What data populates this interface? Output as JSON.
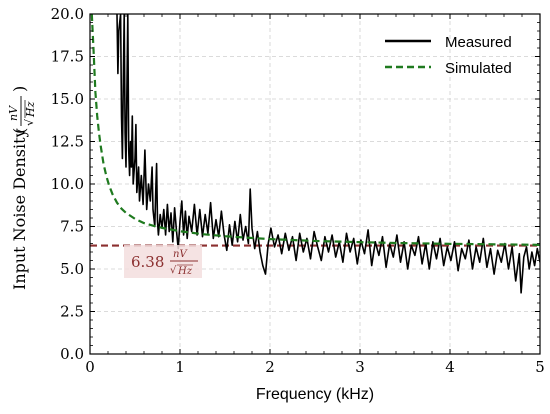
{
  "chart_data": {
    "type": "line",
    "xlabel": "Frequency (kHz)",
    "ylabel": {
      "prefix": "Input Noise Density",
      "open_paren": "(",
      "close_paren": ")",
      "numerator": "nV",
      "denominator": "Hz",
      "sqrt_symbol": "√"
    },
    "xlim": [
      0,
      5
    ],
    "ylim": [
      0,
      20
    ],
    "xticks": [
      0,
      1,
      2,
      3,
      4,
      5
    ],
    "xtick_labels": [
      "0",
      "1",
      "2",
      "3",
      "4",
      "5"
    ],
    "yticks": [
      0,
      2.5,
      5,
      7.5,
      10,
      12.5,
      15,
      17.5,
      20
    ],
    "ytick_labels": [
      "0.0",
      "2.5",
      "5.0",
      "7.5",
      "10.0",
      "12.5",
      "15.0",
      "17.5",
      "20.0"
    ],
    "grid": true,
    "legend_position": "top-right",
    "series": [
      {
        "name": "Measured",
        "color": "#000000",
        "style": "solid",
        "points": [
          [
            0.3,
            20.0
          ],
          [
            0.31,
            16.5
          ],
          [
            0.32,
            19.0
          ],
          [
            0.34,
            20.0
          ],
          [
            0.35,
            14.0
          ],
          [
            0.36,
            11.5
          ],
          [
            0.37,
            16.0
          ],
          [
            0.38,
            20.0
          ],
          [
            0.39,
            13.0
          ],
          [
            0.4,
            11.0
          ],
          [
            0.41,
            15.5
          ],
          [
            0.42,
            20.0
          ],
          [
            0.43,
            12.0
          ],
          [
            0.44,
            10.5
          ],
          [
            0.45,
            12.5
          ],
          [
            0.46,
            11.0
          ],
          [
            0.47,
            14.0
          ],
          [
            0.48,
            10.0
          ],
          [
            0.5,
            11.5
          ],
          [
            0.51,
            13.5
          ],
          [
            0.52,
            9.5
          ],
          [
            0.54,
            11.0
          ],
          [
            0.55,
            9.0
          ],
          [
            0.57,
            10.5
          ],
          [
            0.59,
            8.8
          ],
          [
            0.61,
            12.0
          ],
          [
            0.63,
            8.5
          ],
          [
            0.65,
            10.0
          ],
          [
            0.67,
            9.0
          ],
          [
            0.69,
            11.0
          ],
          [
            0.7,
            8.5
          ],
          [
            0.72,
            7.5
          ],
          [
            0.73,
            9.5
          ],
          [
            0.74,
            11.2
          ],
          [
            0.75,
            7.8
          ],
          [
            0.76,
            7.0
          ],
          [
            0.78,
            8.2
          ],
          [
            0.8,
            7.4
          ],
          [
            0.82,
            8.5
          ],
          [
            0.84,
            7.0
          ],
          [
            0.86,
            8.8
          ],
          [
            0.88,
            7.2
          ],
          [
            0.9,
            8.3
          ],
          [
            0.92,
            6.6
          ],
          [
            0.94,
            8.6
          ],
          [
            0.96,
            7.3
          ],
          [
            0.98,
            6.2
          ],
          [
            1.0,
            7.8
          ],
          [
            1.02,
            9.0
          ],
          [
            1.04,
            7.0
          ],
          [
            1.06,
            8.4
          ],
          [
            1.08,
            6.8
          ],
          [
            1.1,
            8.1
          ],
          [
            1.13,
            7.2
          ],
          [
            1.16,
            8.8
          ],
          [
            1.19,
            7.0
          ],
          [
            1.22,
            8.5
          ],
          [
            1.25,
            6.9
          ],
          [
            1.28,
            8.2
          ],
          [
            1.31,
            7.1
          ],
          [
            1.34,
            8.9
          ],
          [
            1.37,
            6.8
          ],
          [
            1.4,
            7.9
          ],
          [
            1.43,
            6.9
          ],
          [
            1.46,
            8.4
          ],
          [
            1.49,
            7.0
          ],
          [
            1.52,
            6.1
          ],
          [
            1.55,
            7.6
          ],
          [
            1.58,
            6.4
          ],
          [
            1.61,
            7.8
          ],
          [
            1.64,
            6.6
          ],
          [
            1.67,
            8.2
          ],
          [
            1.7,
            6.7
          ],
          [
            1.73,
            7.5
          ],
          [
            1.76,
            6.5
          ],
          [
            1.78,
            9.7
          ],
          [
            1.8,
            7.4
          ],
          [
            1.83,
            6.2
          ],
          [
            1.86,
            7.2
          ],
          [
            1.89,
            6.0
          ],
          [
            1.92,
            5.2
          ],
          [
            1.95,
            4.7
          ],
          [
            1.98,
            6.5
          ],
          [
            2.01,
            7.4
          ],
          [
            2.05,
            6.3
          ],
          [
            2.09,
            7.0
          ],
          [
            2.13,
            5.9
          ],
          [
            2.17,
            7.1
          ],
          [
            2.21,
            6.1
          ],
          [
            2.25,
            6.9
          ],
          [
            2.29,
            5.5
          ],
          [
            2.33,
            7.1
          ],
          [
            2.37,
            6.0
          ],
          [
            2.41,
            6.8
          ],
          [
            2.45,
            5.6
          ],
          [
            2.49,
            7.2
          ],
          [
            2.53,
            6.3
          ],
          [
            2.57,
            5.5
          ],
          [
            2.61,
            6.9
          ],
          [
            2.65,
            6.0
          ],
          [
            2.69,
            7.0
          ],
          [
            2.73,
            5.7
          ],
          [
            2.77,
            6.6
          ],
          [
            2.81,
            5.4
          ],
          [
            2.85,
            7.1
          ],
          [
            2.89,
            6.0
          ],
          [
            2.93,
            6.8
          ],
          [
            2.97,
            5.3
          ],
          [
            3.01,
            6.7
          ],
          [
            3.05,
            5.9
          ],
          [
            3.09,
            7.3
          ],
          [
            3.13,
            5.2
          ],
          [
            3.17,
            6.6
          ],
          [
            3.21,
            5.8
          ],
          [
            3.25,
            6.9
          ],
          [
            3.29,
            5.1
          ],
          [
            3.33,
            6.5
          ],
          [
            3.37,
            5.7
          ],
          [
            3.41,
            7.0
          ],
          [
            3.45,
            5.4
          ],
          [
            3.49,
            6.6
          ],
          [
            3.53,
            5.0
          ],
          [
            3.57,
            6.4
          ],
          [
            3.61,
            5.8
          ],
          [
            3.65,
            6.9
          ],
          [
            3.69,
            5.3
          ],
          [
            3.73,
            6.5
          ],
          [
            3.77,
            5.0
          ],
          [
            3.81,
            6.6
          ],
          [
            3.85,
            5.6
          ],
          [
            3.89,
            6.8
          ],
          [
            3.93,
            5.2
          ],
          [
            3.97,
            6.3
          ],
          [
            4.01,
            5.5
          ],
          [
            4.05,
            6.6
          ],
          [
            4.09,
            4.9
          ],
          [
            4.13,
            6.2
          ],
          [
            4.17,
            5.6
          ],
          [
            4.21,
            6.7
          ],
          [
            4.25,
            5.0
          ],
          [
            4.29,
            6.3
          ],
          [
            4.33,
            5.4
          ],
          [
            4.37,
            6.8
          ],
          [
            4.41,
            5.1
          ],
          [
            4.45,
            6.2
          ],
          [
            4.49,
            4.7
          ],
          [
            4.53,
            6.1
          ],
          [
            4.57,
            5.4
          ],
          [
            4.61,
            6.5
          ],
          [
            4.65,
            5.0
          ],
          [
            4.69,
            6.3
          ],
          [
            4.73,
            4.3
          ],
          [
            4.77,
            5.9
          ],
          [
            4.79,
            3.6
          ],
          [
            4.82,
            5.7
          ],
          [
            4.85,
            6.3
          ],
          [
            4.88,
            5.0
          ],
          [
            4.91,
            6.0
          ],
          [
            4.94,
            5.2
          ],
          [
            4.97,
            6.2
          ],
          [
            5.0,
            5.4
          ]
        ]
      },
      {
        "name": "Simulated",
        "color": "#1f7a1f",
        "style": "dashed",
        "points": [
          [
            0.02,
            20.0
          ],
          [
            0.04,
            17.8
          ],
          [
            0.06,
            15.4
          ],
          [
            0.08,
            14.0
          ],
          [
            0.1,
            13.0
          ],
          [
            0.12,
            12.2
          ],
          [
            0.15,
            11.2
          ],
          [
            0.18,
            10.5
          ],
          [
            0.21,
            9.95
          ],
          [
            0.25,
            9.4
          ],
          [
            0.3,
            8.9
          ],
          [
            0.35,
            8.55
          ],
          [
            0.4,
            8.3
          ],
          [
            0.5,
            7.95
          ],
          [
            0.6,
            7.7
          ],
          [
            0.7,
            7.55
          ],
          [
            0.8,
            7.42
          ],
          [
            1.0,
            7.22
          ],
          [
            1.25,
            7.05
          ],
          [
            1.5,
            6.93
          ],
          [
            1.75,
            6.84
          ],
          [
            2.0,
            6.76
          ],
          [
            2.5,
            6.65
          ],
          [
            3.0,
            6.58
          ],
          [
            3.5,
            6.52
          ],
          [
            4.0,
            6.48
          ],
          [
            4.5,
            6.45
          ],
          [
            5.0,
            6.42
          ]
        ]
      }
    ],
    "reference_line": {
      "value": 6.38,
      "color": "#8b2f2f",
      "style": "dashed",
      "label_value": "6.38",
      "label_numerator": "nV",
      "label_denominator": "Hz",
      "label_sqrt": "√"
    }
  }
}
